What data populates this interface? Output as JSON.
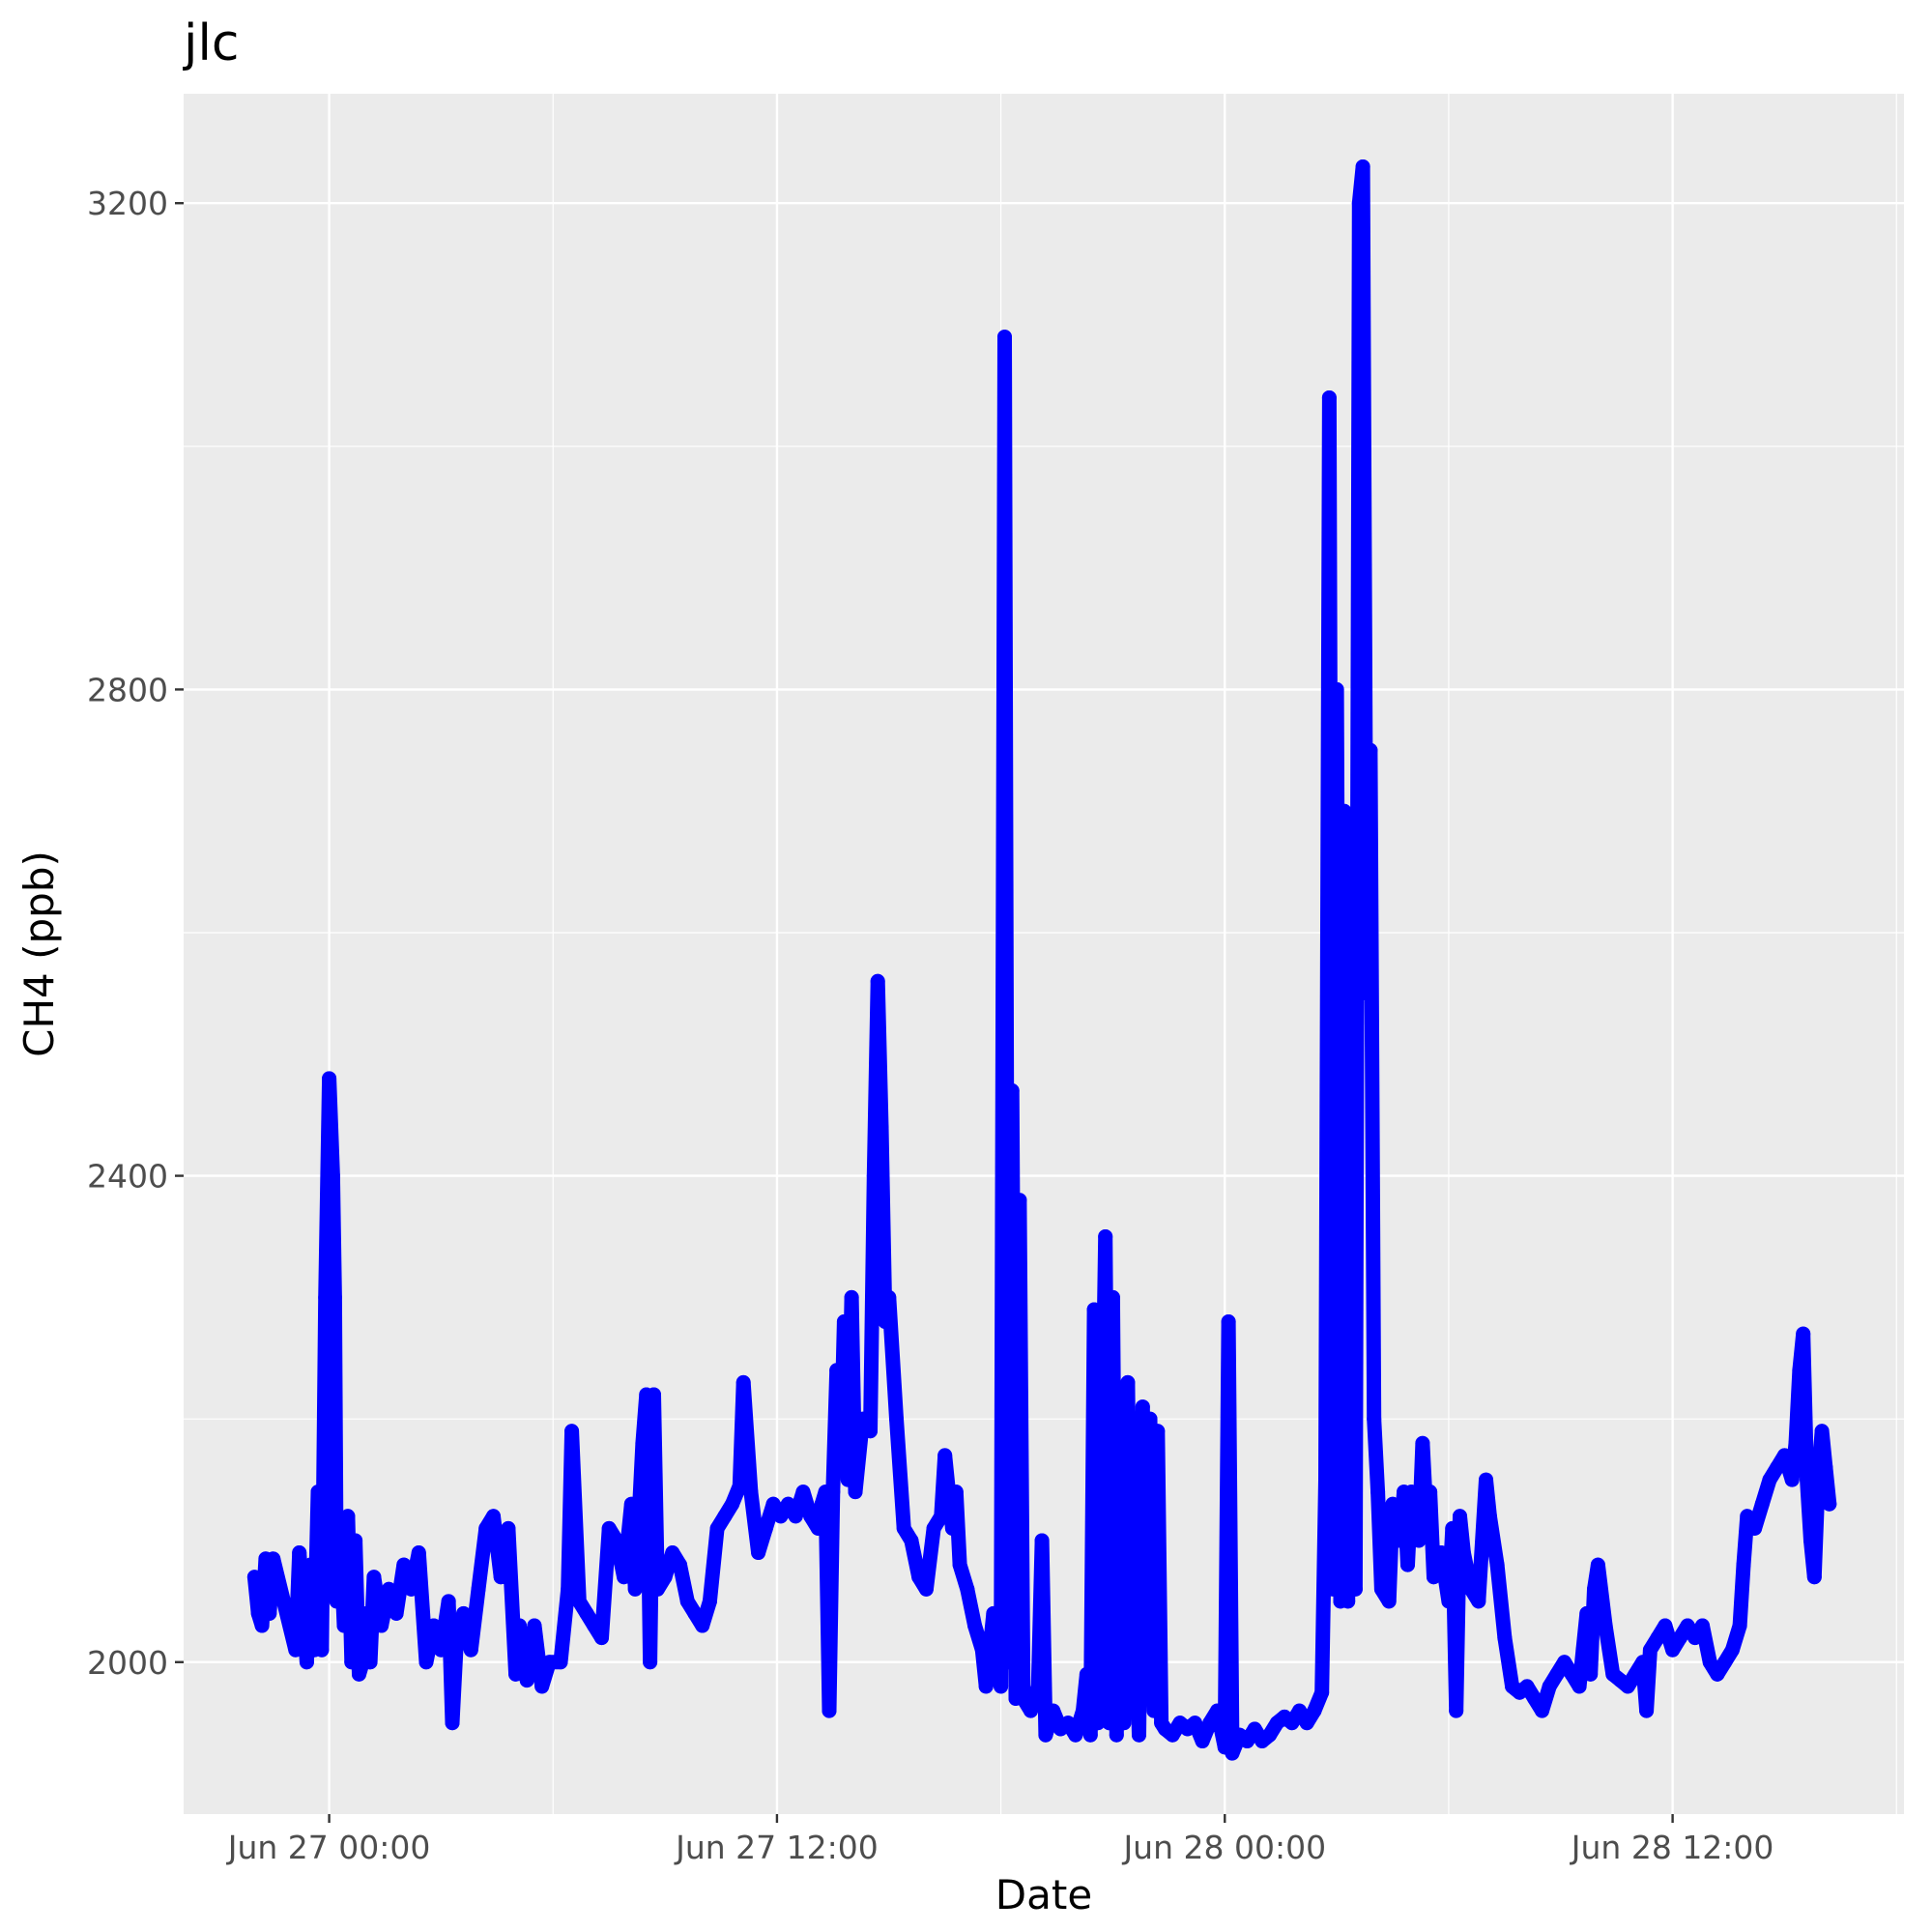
{
  "chart_data": {
    "type": "line",
    "title": "jlc",
    "xlabel": "Date",
    "ylabel": "CH4 (ppb)",
    "x_ticks": [
      {
        "value": 0,
        "label": "Jun 27 00:00"
      },
      {
        "value": 12,
        "label": "Jun 27 12:00"
      },
      {
        "value": 24,
        "label": "Jun 28 00:00"
      },
      {
        "value": 36,
        "label": "Jun 28 12:00"
      }
    ],
    "y_ticks": [
      {
        "value": 2000,
        "label": "2000"
      },
      {
        "value": 2400,
        "label": "2400"
      },
      {
        "value": 2800,
        "label": "2800"
      },
      {
        "value": 3200,
        "label": "3200"
      }
    ],
    "x_unit": "hours since Jun 27 00:00",
    "xlim": [
      -3.9,
      42.2
    ],
    "ylim": [
      1875,
      3290
    ],
    "grid": true,
    "series_color": "#0000ff",
    "series": [
      {
        "name": "CH4",
        "points": [
          [
            -2.0,
            2070
          ],
          [
            -1.9,
            2040
          ],
          [
            -1.8,
            2030
          ],
          [
            -1.7,
            2085
          ],
          [
            -1.6,
            2040
          ],
          [
            -1.5,
            2085
          ],
          [
            -0.9,
            2010
          ],
          [
            -0.8,
            2090
          ],
          [
            -0.6,
            2000
          ],
          [
            -0.5,
            2080
          ],
          [
            -0.4,
            2010
          ],
          [
            -0.3,
            2140
          ],
          [
            -0.2,
            2010
          ],
          [
            -0.1,
            2300
          ],
          [
            0.0,
            2480
          ],
          [
            0.1,
            2400
          ],
          [
            0.15,
            2300
          ],
          [
            0.2,
            2050
          ],
          [
            0.3,
            2100
          ],
          [
            0.4,
            2030
          ],
          [
            0.5,
            2120
          ],
          [
            0.6,
            2000
          ],
          [
            0.7,
            2100
          ],
          [
            0.8,
            1990
          ],
          [
            0.9,
            2000
          ],
          [
            1.0,
            2040
          ],
          [
            1.1,
            2000
          ],
          [
            1.2,
            2070
          ],
          [
            1.4,
            2030
          ],
          [
            1.6,
            2060
          ],
          [
            1.8,
            2040
          ],
          [
            2.0,
            2080
          ],
          [
            2.2,
            2060
          ],
          [
            2.4,
            2090
          ],
          [
            2.6,
            2000
          ],
          [
            2.8,
            2030
          ],
          [
            3.0,
            2010
          ],
          [
            3.2,
            2050
          ],
          [
            3.3,
            1950
          ],
          [
            3.4,
            2010
          ],
          [
            3.6,
            2040
          ],
          [
            3.8,
            2010
          ],
          [
            4.0,
            2060
          ],
          [
            4.2,
            2110
          ],
          [
            4.4,
            2120
          ],
          [
            4.6,
            2070
          ],
          [
            4.8,
            2110
          ],
          [
            5.0,
            1990
          ],
          [
            5.1,
            2030
          ],
          [
            5.3,
            1985
          ],
          [
            5.5,
            2030
          ],
          [
            5.7,
            1980
          ],
          [
            5.9,
            2000
          ],
          [
            6.2,
            2000
          ],
          [
            6.4,
            2060
          ],
          [
            6.5,
            2190
          ],
          [
            6.7,
            2050
          ],
          [
            6.9,
            2040
          ],
          [
            7.1,
            2030
          ],
          [
            7.3,
            2020
          ],
          [
            7.5,
            2110
          ],
          [
            7.7,
            2100
          ],
          [
            7.9,
            2070
          ],
          [
            8.1,
            2130
          ],
          [
            8.2,
            2060
          ],
          [
            8.3,
            2120
          ],
          [
            8.4,
            2180
          ],
          [
            8.5,
            2220
          ],
          [
            8.6,
            2000
          ],
          [
            8.7,
            2220
          ],
          [
            8.8,
            2060
          ],
          [
            9.0,
            2070
          ],
          [
            9.2,
            2090
          ],
          [
            9.4,
            2080
          ],
          [
            9.6,
            2050
          ],
          [
            9.8,
            2040
          ],
          [
            10.0,
            2030
          ],
          [
            10.2,
            2050
          ],
          [
            10.4,
            2110
          ],
          [
            10.6,
            2120
          ],
          [
            10.8,
            2130
          ],
          [
            11.0,
            2145
          ],
          [
            11.1,
            2230
          ],
          [
            11.3,
            2140
          ],
          [
            11.5,
            2090
          ],
          [
            11.7,
            2110
          ],
          [
            11.9,
            2130
          ],
          [
            12.1,
            2120
          ],
          [
            12.3,
            2130
          ],
          [
            12.5,
            2120
          ],
          [
            12.7,
            2140
          ],
          [
            12.9,
            2120
          ],
          [
            13.1,
            2110
          ],
          [
            13.2,
            2130
          ],
          [
            13.3,
            2140
          ],
          [
            13.4,
            1960
          ],
          [
            13.5,
            2140
          ],
          [
            13.6,
            2240
          ],
          [
            13.7,
            2160
          ],
          [
            13.8,
            2280
          ],
          [
            13.9,
            2150
          ],
          [
            14.0,
            2300
          ],
          [
            14.1,
            2140
          ],
          [
            14.3,
            2200
          ],
          [
            14.5,
            2190
          ],
          [
            14.6,
            2400
          ],
          [
            14.7,
            2560
          ],
          [
            14.8,
            2440
          ],
          [
            14.9,
            2280
          ],
          [
            15.0,
            2300
          ],
          [
            15.2,
            2200
          ],
          [
            15.4,
            2110
          ],
          [
            15.6,
            2100
          ],
          [
            15.8,
            2070
          ],
          [
            16.0,
            2060
          ],
          [
            16.2,
            2110
          ],
          [
            16.4,
            2120
          ],
          [
            16.5,
            2170
          ],
          [
            16.7,
            2110
          ],
          [
            16.8,
            2140
          ],
          [
            16.9,
            2080
          ],
          [
            17.1,
            2060
          ],
          [
            17.3,
            2030
          ],
          [
            17.5,
            2010
          ],
          [
            17.6,
            1980
          ],
          [
            17.8,
            2040
          ],
          [
            17.9,
            1990
          ],
          [
            18.0,
            1980
          ],
          [
            18.1,
            3090
          ],
          [
            18.2,
            2000
          ],
          [
            18.3,
            2470
          ],
          [
            18.4,
            1970
          ],
          [
            18.5,
            2380
          ],
          [
            18.6,
            1970
          ],
          [
            18.8,
            1960
          ],
          [
            19.0,
            1980
          ],
          [
            19.1,
            2100
          ],
          [
            19.2,
            1940
          ],
          [
            19.4,
            1960
          ],
          [
            19.6,
            1945
          ],
          [
            19.8,
            1950
          ],
          [
            20.0,
            1940
          ],
          [
            20.2,
            1960
          ],
          [
            20.3,
            1990
          ],
          [
            20.4,
            1940
          ],
          [
            20.5,
            2290
          ],
          [
            20.6,
            1950
          ],
          [
            20.8,
            2350
          ],
          [
            20.9,
            1950
          ],
          [
            21.0,
            2300
          ],
          [
            21.1,
            1940
          ],
          [
            21.2,
            2220
          ],
          [
            21.3,
            1950
          ],
          [
            21.4,
            2230
          ],
          [
            21.5,
            1960
          ],
          [
            21.6,
            2050
          ],
          [
            21.7,
            1940
          ],
          [
            21.8,
            2210
          ],
          [
            21.9,
            1980
          ],
          [
            22.0,
            2200
          ],
          [
            22.1,
            1960
          ],
          [
            22.2,
            2190
          ],
          [
            22.3,
            1950
          ],
          [
            22.4,
            1945
          ],
          [
            22.6,
            1940
          ],
          [
            22.8,
            1950
          ],
          [
            23.0,
            1945
          ],
          [
            23.2,
            1950
          ],
          [
            23.4,
            1935
          ],
          [
            23.6,
            1950
          ],
          [
            23.8,
            1960
          ],
          [
            24.0,
            1930
          ],
          [
            24.1,
            2280
          ],
          [
            24.2,
            1925
          ],
          [
            24.4,
            1940
          ],
          [
            24.6,
            1935
          ],
          [
            24.8,
            1945
          ],
          [
            25.0,
            1935
          ],
          [
            25.2,
            1940
          ],
          [
            25.4,
            1950
          ],
          [
            25.6,
            1955
          ],
          [
            25.8,
            1950
          ],
          [
            26.0,
            1960
          ],
          [
            26.2,
            1950
          ],
          [
            26.4,
            1960
          ],
          [
            26.6,
            1975
          ],
          [
            26.7,
            2150
          ],
          [
            26.8,
            3040
          ],
          [
            26.9,
            2060
          ],
          [
            27.0,
            2800
          ],
          [
            27.1,
            2050
          ],
          [
            27.2,
            2700
          ],
          [
            27.3,
            2050
          ],
          [
            27.4,
            2600
          ],
          [
            27.5,
            2060
          ],
          [
            27.6,
            3200
          ],
          [
            27.7,
            3230
          ],
          [
            27.8,
            2550
          ],
          [
            27.9,
            2750
          ],
          [
            28.0,
            2200
          ],
          [
            28.1,
            2140
          ],
          [
            28.2,
            2060
          ],
          [
            28.4,
            2050
          ],
          [
            28.5,
            2130
          ],
          [
            28.7,
            2100
          ],
          [
            28.8,
            2140
          ],
          [
            28.9,
            2080
          ],
          [
            29.0,
            2140
          ],
          [
            29.2,
            2100
          ],
          [
            29.3,
            2180
          ],
          [
            29.4,
            2120
          ],
          [
            29.5,
            2140
          ],
          [
            29.6,
            2070
          ],
          [
            29.8,
            2090
          ],
          [
            30.0,
            2050
          ],
          [
            30.1,
            2110
          ],
          [
            30.2,
            1960
          ],
          [
            30.3,
            2120
          ],
          [
            30.4,
            2090
          ],
          [
            30.6,
            2060
          ],
          [
            30.8,
            2050
          ],
          [
            31.0,
            2150
          ],
          [
            31.1,
            2120
          ],
          [
            31.3,
            2080
          ],
          [
            31.5,
            2020
          ],
          [
            31.7,
            1980
          ],
          [
            31.9,
            1975
          ],
          [
            32.1,
            1980
          ],
          [
            32.3,
            1970
          ],
          [
            32.5,
            1960
          ],
          [
            32.7,
            1980
          ],
          [
            32.9,
            1990
          ],
          [
            33.1,
            2000
          ],
          [
            33.3,
            1990
          ],
          [
            33.5,
            1980
          ],
          [
            33.6,
            2010
          ],
          [
            33.7,
            2040
          ],
          [
            33.8,
            1990
          ],
          [
            33.9,
            2060
          ],
          [
            34.0,
            2080
          ],
          [
            34.2,
            2030
          ],
          [
            34.4,
            1990
          ],
          [
            34.6,
            1985
          ],
          [
            34.8,
            1980
          ],
          [
            35.0,
            1990
          ],
          [
            35.2,
            2000
          ],
          [
            35.3,
            1960
          ],
          [
            35.4,
            2010
          ],
          [
            35.6,
            2020
          ],
          [
            35.8,
            2030
          ],
          [
            36.0,
            2010
          ],
          [
            36.2,
            2020
          ],
          [
            36.4,
            2030
          ],
          [
            36.6,
            2020
          ],
          [
            36.8,
            2030
          ],
          [
            37.0,
            2000
          ],
          [
            37.2,
            1990
          ],
          [
            37.4,
            2000
          ],
          [
            37.6,
            2010
          ],
          [
            37.8,
            2030
          ],
          [
            37.9,
            2080
          ],
          [
            38.0,
            2120
          ],
          [
            38.2,
            2110
          ],
          [
            38.4,
            2130
          ],
          [
            38.6,
            2150
          ],
          [
            38.8,
            2160
          ],
          [
            39.0,
            2170
          ],
          [
            39.2,
            2150
          ],
          [
            39.3,
            2180
          ],
          [
            39.4,
            2240
          ],
          [
            39.5,
            2270
          ],
          [
            39.6,
            2150
          ],
          [
            39.7,
            2100
          ],
          [
            39.8,
            2070
          ],
          [
            39.9,
            2150
          ],
          [
            40.0,
            2190
          ],
          [
            40.1,
            2160
          ],
          [
            40.2,
            2130
          ]
        ]
      }
    ]
  }
}
